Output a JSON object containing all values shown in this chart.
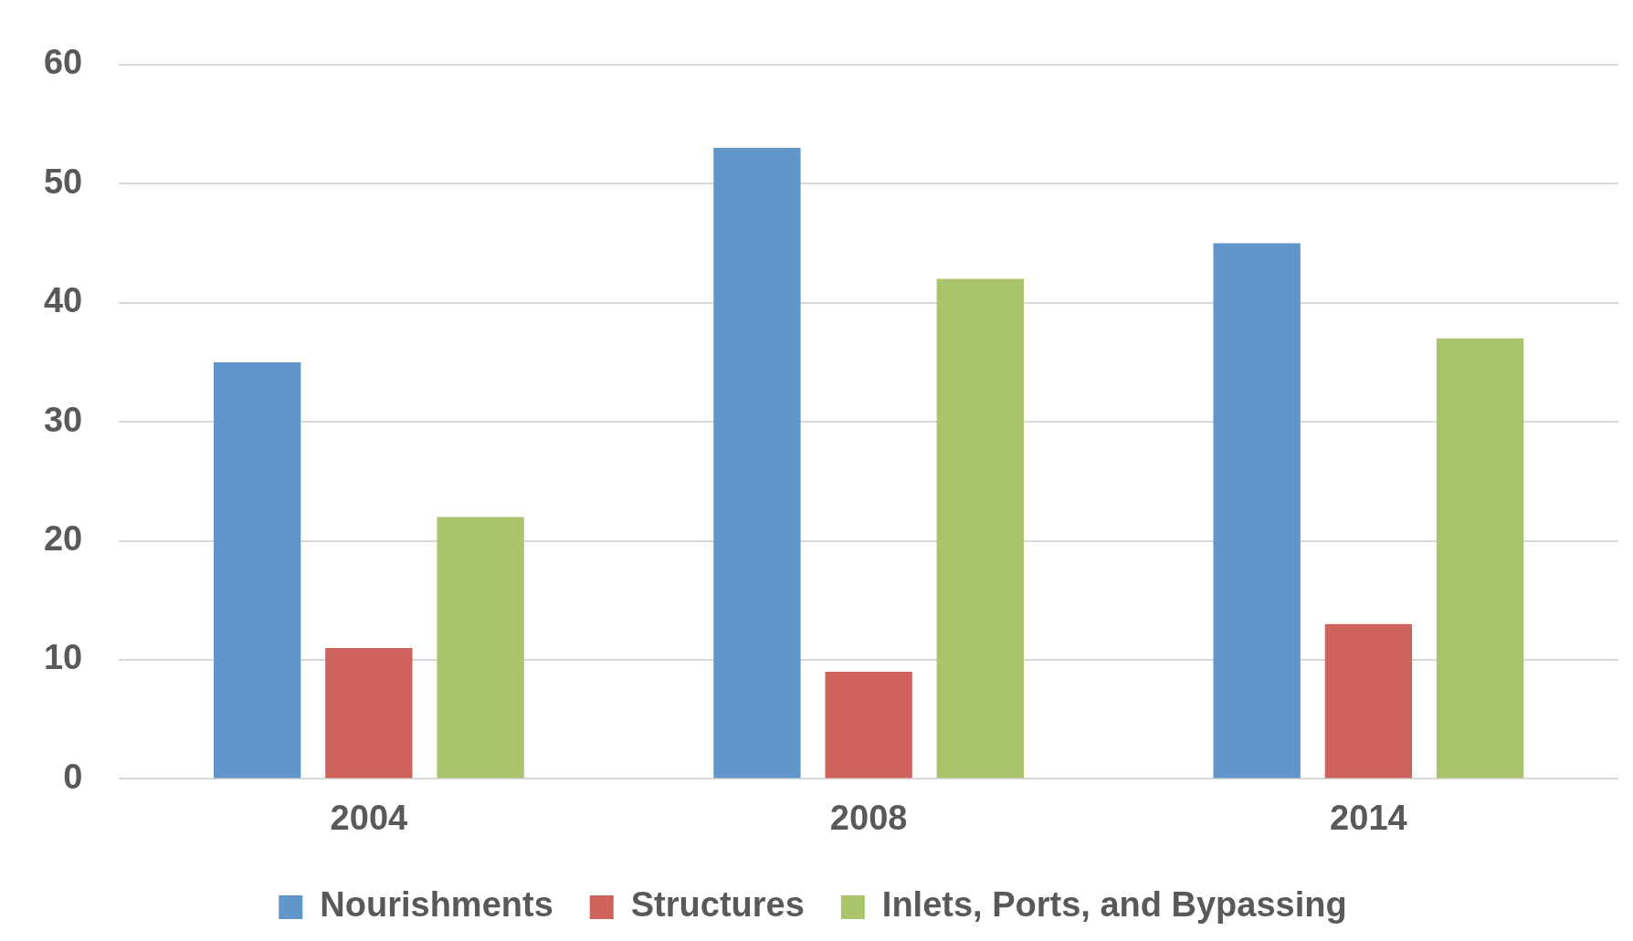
{
  "chart_data": {
    "type": "bar",
    "categories": [
      "2004",
      "2008",
      "2014"
    ],
    "series": [
      {
        "name": "Nourishments",
        "color": "#6096c9",
        "values": [
          35,
          53,
          45
        ]
      },
      {
        "name": "Structures",
        "color": "#cd635c",
        "values": [
          11,
          9,
          13
        ]
      },
      {
        "name": "Inlets, Ports, and Bypassing",
        "color": "#a9c46a",
        "values": [
          22,
          42,
          37
        ]
      }
    ],
    "ylim": [
      0,
      60
    ],
    "yticks": [
      0,
      10,
      20,
      30,
      40,
      50,
      60
    ],
    "grid": "y",
    "legend": "bottom"
  }
}
